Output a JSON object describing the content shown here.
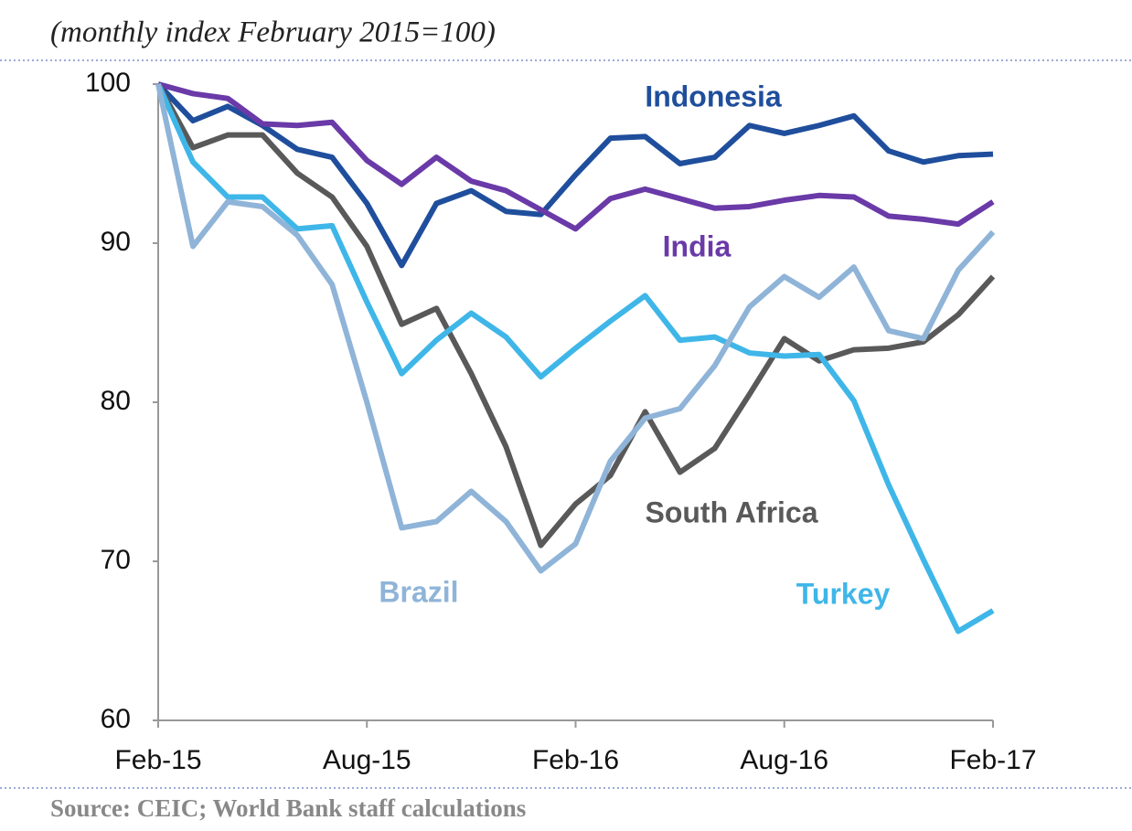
{
  "chart_data": {
    "type": "line",
    "title": "(monthly index February 2015=100)",
    "source": "Source: CEIC; World Bank staff calculations",
    "categories": [
      "Feb-15",
      null,
      null,
      null,
      null,
      null,
      "Aug-15",
      null,
      null,
      null,
      null,
      null,
      "Feb-16",
      null,
      null,
      null,
      null,
      null,
      "Aug-16",
      null,
      null,
      null,
      null,
      null,
      "Feb-17"
    ],
    "ylim": [
      60,
      100
    ],
    "yticks": [
      60,
      70,
      80,
      90,
      100
    ],
    "grid": false,
    "series": [
      {
        "name": "Indonesia",
        "color": "#1f4e9c",
        "values": [
          100,
          97.7,
          98.6,
          97.4,
          95.9,
          95.4,
          92.5,
          88.6,
          92.5,
          93.3,
          92.0,
          91.8,
          94.3,
          96.6,
          96.7,
          95.0,
          95.4,
          97.4,
          96.9,
          97.4,
          98.0,
          95.8,
          95.1,
          95.5,
          95.6
        ]
      },
      {
        "name": "India",
        "color": "#6a3aa8",
        "values": [
          100,
          99.4,
          99.1,
          97.5,
          97.4,
          97.6,
          95.2,
          93.7,
          95.4,
          93.9,
          93.3,
          92.1,
          90.9,
          92.8,
          93.4,
          92.8,
          92.2,
          92.3,
          92.7,
          93.0,
          92.9,
          91.7,
          91.5,
          91.2,
          92.6
        ]
      },
      {
        "name": "South Africa",
        "color": "#595959",
        "values": [
          100,
          96.0,
          96.8,
          96.8,
          94.4,
          92.9,
          89.8,
          84.9,
          85.9,
          81.8,
          77.2,
          71.0,
          73.6,
          75.4,
          79.4,
          75.6,
          77.1,
          80.5,
          84.0,
          82.6,
          83.3,
          83.4,
          83.8,
          85.5,
          87.9
        ]
      },
      {
        "name": "Turkey",
        "color": "#3fb6e8",
        "values": [
          100,
          95.1,
          92.9,
          92.9,
          90.9,
          91.1,
          86.3,
          81.8,
          83.9,
          85.6,
          84.1,
          81.6,
          83.4,
          85.1,
          86.7,
          83.9,
          84.1,
          83.1,
          82.9,
          83.0,
          80.1,
          74.8,
          70.1,
          65.6,
          66.9
        ]
      },
      {
        "name": "Brazil",
        "color": "#8fb4d8",
        "values": [
          100,
          89.8,
          92.6,
          92.3,
          90.5,
          87.4,
          80.0,
          72.1,
          72.5,
          74.4,
          72.5,
          69.4,
          71.1,
          76.3,
          79.0,
          79.6,
          82.3,
          86.0,
          87.9,
          86.6,
          88.5,
          84.5,
          84.0,
          88.3,
          90.7
        ]
      }
    ]
  }
}
